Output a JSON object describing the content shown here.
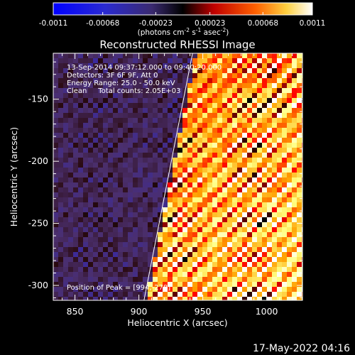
{
  "colorbar": {
    "tick_labels": [
      "-0.0011",
      "-0.00068",
      "-0.00023",
      "0.00023",
      "0.00068",
      "0.0011"
    ],
    "tick_values": [
      -0.0011,
      -0.00068,
      -0.00023,
      0.00023,
      0.00068,
      0.0011
    ],
    "range": [
      -0.0011,
      0.0011
    ],
    "unit_prefix": "(photons cm",
    "unit_exp1": "-2",
    "unit_mid": " s",
    "unit_exp2": "-1",
    "unit_mid2": " asec",
    "unit_exp3": "-2",
    "unit_suffix": ")"
  },
  "chart_data": {
    "type": "heatmap",
    "title": "Reconstructed RHESSI Image",
    "xlabel": "Heliocentric X (arcsec)",
    "ylabel": "Heliocentric Y (arcsec)",
    "xlim": [
      833,
      1028
    ],
    "ylim": [
      -312,
      -113
    ],
    "x_ticks": [
      850,
      900,
      950,
      1000
    ],
    "y_ticks": [
      -300,
      -250,
      -200,
      -150
    ],
    "x_tick_labels": [
      "850",
      "900",
      "950",
      "1000"
    ],
    "y_tick_labels": [
      "-300",
      "-250",
      "-200",
      "-150"
    ],
    "colormap": [
      "#0000ff",
      "#3a2aa0",
      "#4b2f6e",
      "#2a0a10",
      "#000000",
      "#ff0000",
      "#ffa000",
      "#ffff80",
      "#ffffff"
    ],
    "limb_line": [
      [
        904,
        -312
      ],
      [
        942,
        -113
      ]
    ],
    "info_lines": [
      "13-Sep-2014 09:37:12.000 to 09:40:20.000",
      "Detectors: 3F 6F 9F, Att 0",
      "Energy Range: 25.0 - 50.0 keV",
      "Clean     Total counts: 2.05E+03"
    ],
    "peak_label": "Position of Peak = [994,-278]",
    "peak": [
      994,
      -278
    ]
  },
  "timestamp": "17-May-2022 04:16"
}
